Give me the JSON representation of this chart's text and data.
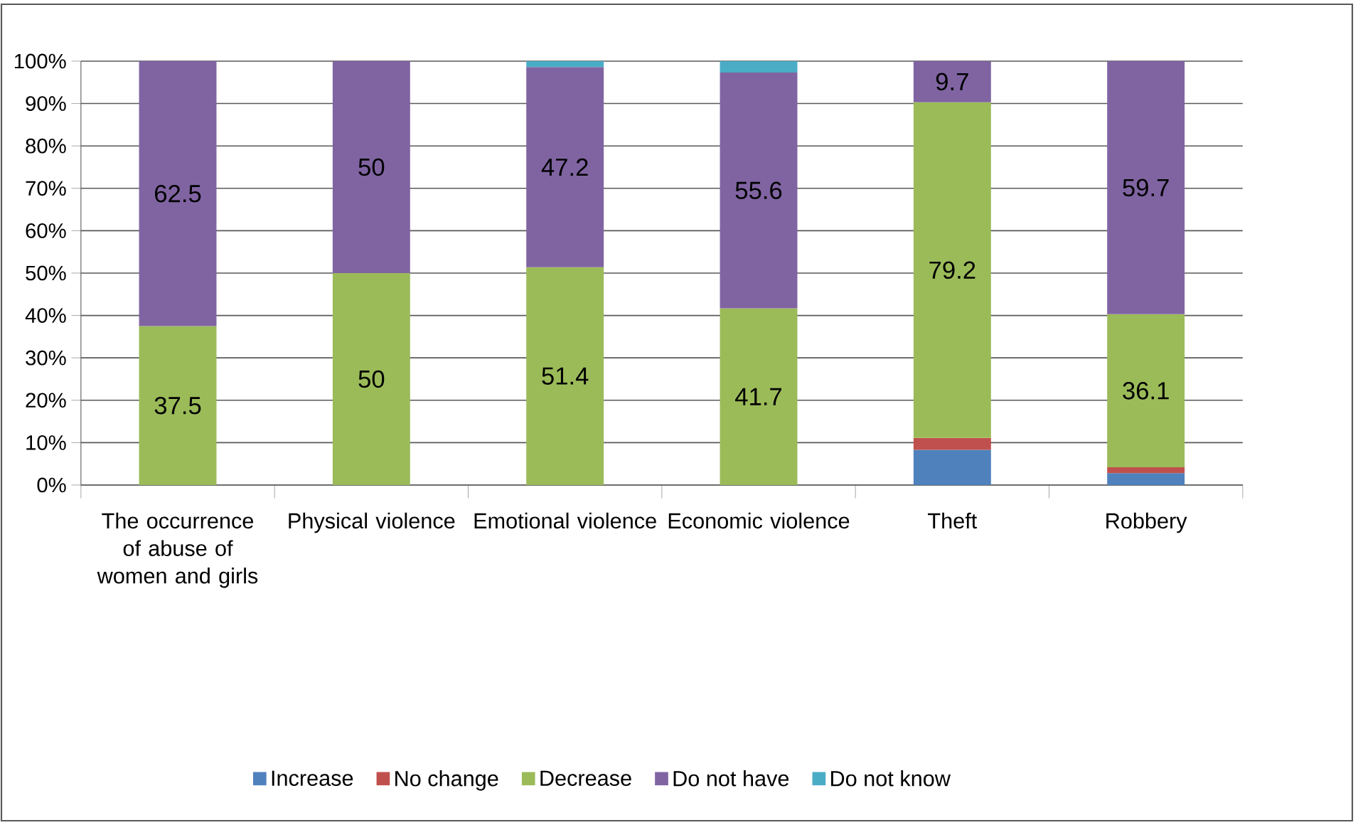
{
  "chart_data": {
    "type": "bar",
    "stacked": true,
    "categories": [
      "The occurrence of abuse of women and girls",
      "Physical violence",
      "Emotional violence",
      "Economic violence",
      "Theft",
      "Robbery"
    ],
    "series": [
      {
        "name": "Increase",
        "color": "#4f81bd",
        "values": [
          null,
          null,
          null,
          null,
          8.3,
          2.8
        ]
      },
      {
        "name": "No change",
        "color": "#c0504d",
        "values": [
          null,
          null,
          null,
          null,
          2.8,
          1.4
        ]
      },
      {
        "name": "Decrease",
        "color": "#9bbb59",
        "values": [
          37.5,
          50,
          51.4,
          41.7,
          79.2,
          36.1
        ],
        "value_labels": [
          "37.5",
          "50",
          "51.4",
          "41.7",
          "79.2",
          "36.1"
        ]
      },
      {
        "name": "Do not have",
        "color": "#8064a2",
        "values": [
          62.5,
          50,
          47.2,
          55.6,
          9.7,
          59.7
        ],
        "value_labels": [
          "62.5",
          "50",
          "47.2",
          "55.6",
          "9.7",
          "59.7"
        ]
      },
      {
        "name": "Do not know",
        "color": "#4bacc6",
        "values": [
          null,
          null,
          1.4,
          2.7,
          null,
          null
        ]
      }
    ],
    "ylim": [
      0,
      100
    ],
    "yticks": [
      {
        "value": 0,
        "label": "0%"
      },
      {
        "value": 10,
        "label": "10%"
      },
      {
        "value": 20,
        "label": "20%"
      },
      {
        "value": 30,
        "label": "30%"
      },
      {
        "value": 40,
        "label": "40%"
      },
      {
        "value": 50,
        "label": "50%"
      },
      {
        "value": 60,
        "label": "60%"
      },
      {
        "value": 70,
        "label": "70%"
      },
      {
        "value": 80,
        "label": "80%"
      },
      {
        "value": 90,
        "label": "90%"
      },
      {
        "value": 100,
        "label": "100%"
      }
    ],
    "grid": "y",
    "legend": "bottom"
  }
}
